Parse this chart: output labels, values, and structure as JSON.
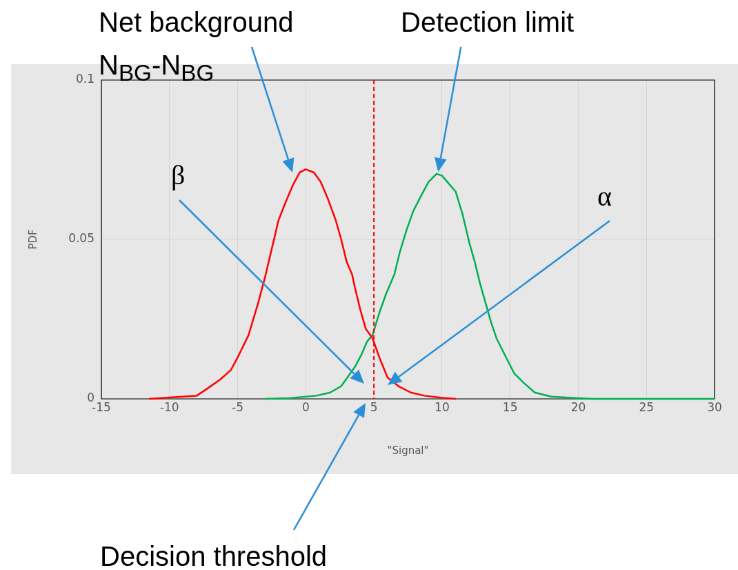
{
  "chart_data": {
    "type": "line",
    "xlabel": "\"Signal\"",
    "ylabel": "PDF",
    "xlim": [
      -15,
      30
    ],
    "xticks": [
      -15,
      -10,
      -5,
      0,
      5,
      10,
      15,
      20,
      25,
      30
    ],
    "ylim": [
      0,
      0.1
    ],
    "yticks": [
      0,
      0.05,
      0.1
    ],
    "grid": true,
    "legend": false,
    "marker": "none",
    "line_style": "solid",
    "series": [
      {
        "color": "#ff0000",
        "x": [
          -11.5,
          -9.8,
          -8,
          -7.3,
          -6.3,
          -5.5,
          -5,
          -4.2,
          -3.5,
          -3,
          -2.5,
          -2,
          -1.45,
          -0.95,
          -0.45,
          0,
          0.6,
          1.1,
          1.6,
          2.2,
          2.6,
          3,
          3.4,
          3.6,
          4,
          4.4,
          4.9,
          5.4,
          6,
          6.8,
          7.7,
          8.7,
          10,
          11
        ],
        "values": [
          0,
          0.0005,
          0.001,
          0.003,
          0.006,
          0.009,
          0.013,
          0.02,
          0.03,
          0.038,
          0.047,
          0.056,
          0.062,
          0.067,
          0.071,
          0.072,
          0.071,
          0.068,
          0.063,
          0.056,
          0.05,
          0.043,
          0.039,
          0.035,
          0.028,
          0.022,
          0.019,
          0.013,
          0.0067,
          0.004,
          0.002,
          0.001,
          0.0003,
          0
        ]
      },
      {
        "color": "#00b050",
        "x": [
          -3,
          -1.2,
          0.8,
          1.8,
          2.6,
          3.1,
          3.6,
          4.1,
          4.5,
          4.9,
          5.4,
          5.9,
          6.5,
          6.9,
          7.4,
          7.9,
          8.5,
          9,
          9.6,
          10,
          10.4,
          11,
          11.5,
          12,
          12.4,
          12.8,
          13.2,
          13.6,
          14,
          14.7,
          15.3,
          16,
          16.8,
          18,
          20,
          21,
          30
        ],
        "values": [
          0,
          0.0002,
          0.001,
          0.002,
          0.004,
          0.007,
          0.01,
          0.014,
          0.018,
          0.02,
          0.027,
          0.033,
          0.039,
          0.046,
          0.053,
          0.059,
          0.064,
          0.068,
          0.0706,
          0.07,
          0.068,
          0.065,
          0.058,
          0.049,
          0.043,
          0.036,
          0.03,
          0.024,
          0.019,
          0.013,
          0.008,
          0.005,
          0.002,
          0.0007,
          0.0002,
          0,
          0
        ]
      }
    ],
    "ref_lines": [
      {
        "axis": "x",
        "value": 5,
        "color": "#ff0000",
        "line_style": "dashed"
      }
    ],
    "annotations": [
      "Net background",
      "N$_{BG}$-N$_{BG}$",
      "Detection limit",
      "β",
      "α",
      "Decision threshold"
    ]
  }
}
